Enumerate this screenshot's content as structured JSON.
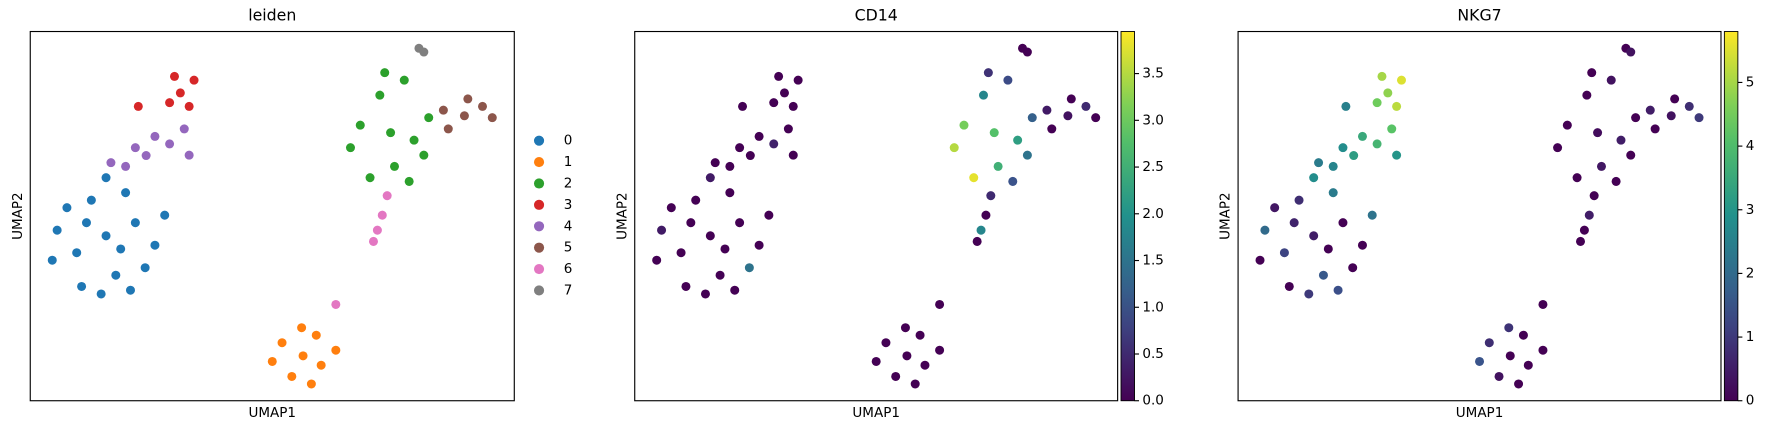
{
  "chart_data": [
    {
      "type": "scatter",
      "title": "leiden",
      "x_label": "UMAP1",
      "y_label": "UMAP2",
      "legend": "right",
      "series": [
        {
          "name": "0",
          "color": "#1f77b4",
          "x": [
            1.6,
            1.0,
            2.2,
            0.6,
            1.3,
            2.0,
            2.6,
            1.8,
            1.1,
            0.8,
            2.4,
            1.5,
            0.5,
            2.8,
            1.9,
            1.2,
            2.1,
            1.6
          ],
          "y": [
            4.45,
            4.0,
            4.8,
            4.6,
            5.4,
            5.6,
            4.2,
            3.4,
            3.1,
            5.2,
            3.6,
            2.9,
            3.8,
            5.0,
            4.1,
            4.8,
            3.0,
            6.0
          ]
        },
        {
          "name": "1",
          "color": "#ff7f0e",
          "x": [
            5.63,
            5.2,
            6.0,
            5.0,
            5.9,
            5.4,
            6.3,
            5.6,
            5.8
          ],
          "y": [
            1.25,
            1.6,
            1.0,
            1.1,
            1.8,
            0.7,
            1.4,
            2.0,
            0.5
          ]
        },
        {
          "name": "2",
          "color": "#2ca02c",
          "x": [
            7.42,
            6.8,
            7.9,
            7.2,
            7.7,
            6.6,
            8.2,
            7.5,
            7.0,
            7.8,
            7.3,
            8.1
          ],
          "y": [
            7.2,
            7.4,
            7.0,
            8.2,
            8.6,
            6.8,
            7.6,
            6.3,
            6.0,
            5.9,
            8.8,
            6.6
          ]
        },
        {
          "name": "3",
          "color": "#d62728",
          "x": [
            3.12,
            3.4,
            2.9,
            3.3,
            3.0,
            2.26
          ],
          "y": [
            8.26,
            8.6,
            8.0,
            7.9,
            8.7,
            7.9
          ]
        },
        {
          "name": "4",
          "color": "#9467bd",
          "x": [
            2.42,
            2.0,
            2.9,
            3.2,
            1.7,
            2.6,
            3.3,
            2.2
          ],
          "y": [
            6.59,
            6.3,
            6.9,
            7.3,
            6.4,
            7.1,
            6.6,
            6.8
          ]
        },
        {
          "name": "5",
          "color": "#8c564b",
          "x": [
            8.93,
            8.6,
            9.3,
            9.0,
            8.5,
            9.5
          ],
          "y": [
            7.65,
            7.3,
            7.9,
            8.1,
            7.8,
            7.6
          ]
        },
        {
          "name": "6",
          "color": "#e377c2",
          "x": [
            7.35,
            7.25,
            7.15,
            7.07,
            6.3
          ],
          "y": [
            5.52,
            5.0,
            4.6,
            4.3,
            2.62
          ]
        },
        {
          "name": "7",
          "color": "#7f7f7f",
          "x": [
            8.0,
            8.1
          ],
          "y": [
            9.45,
            9.35
          ]
        }
      ]
    },
    {
      "type": "scatter",
      "title": "CD14",
      "x_label": "UMAP1",
      "y_label": "UMAP2",
      "colormap": "viridis",
      "x": [
        1.6,
        1.0,
        2.2,
        0.6,
        1.3,
        2.0,
        2.6,
        1.8,
        1.1,
        0.8,
        2.4,
        1.5,
        0.5,
        2.8,
        1.9,
        1.2,
        2.1,
        1.6,
        5.63,
        5.2,
        6.0,
        5.0,
        5.9,
        5.4,
        6.3,
        5.6,
        5.8,
        7.42,
        6.8,
        7.9,
        7.2,
        7.7,
        6.6,
        8.2,
        7.5,
        7.0,
        7.8,
        7.3,
        8.1,
        3.12,
        3.4,
        2.9,
        3.3,
        3.0,
        2.26,
        2.42,
        2.0,
        2.9,
        3.2,
        1.7,
        2.6,
        3.3,
        2.2,
        8.93,
        8.6,
        9.3,
        9.0,
        8.5,
        9.5,
        7.35,
        7.25,
        7.15,
        7.07,
        6.3,
        8.0,
        8.1
      ],
      "y": [
        4.45,
        4.0,
        4.8,
        4.6,
        5.4,
        5.6,
        4.2,
        3.4,
        3.1,
        5.2,
        3.6,
        2.9,
        3.8,
        5.0,
        4.1,
        4.8,
        3.0,
        6.0,
        1.25,
        1.6,
        1.0,
        1.1,
        1.8,
        0.7,
        1.4,
        2.0,
        0.5,
        7.2,
        7.4,
        7.0,
        8.2,
        8.6,
        6.8,
        7.6,
        6.3,
        6.0,
        5.9,
        8.8,
        6.6,
        8.26,
        8.6,
        8.0,
        7.9,
        8.7,
        7.9,
        6.59,
        6.3,
        6.9,
        7.3,
        6.4,
        7.1,
        6.6,
        6.8,
        7.65,
        7.3,
        7.9,
        8.1,
        7.8,
        7.6,
        5.52,
        5.0,
        4.6,
        4.3,
        2.62,
        9.45,
        9.35
      ],
      "values": [
        0,
        0,
        0,
        0.3,
        0,
        0,
        0,
        0,
        0,
        0,
        1.5,
        0,
        0,
        0,
        0,
        0,
        0,
        0.3,
        0,
        0,
        0,
        0,
        0,
        0,
        0,
        0,
        0,
        2.8,
        3.1,
        2.2,
        1.8,
        0.9,
        3.5,
        1.2,
        2.5,
        3.8,
        1.0,
        0.6,
        1.5,
        0,
        0,
        0,
        0,
        0,
        0,
        0,
        0,
        0.4,
        0,
        0,
        0,
        0,
        0,
        0.2,
        0,
        0.5,
        0,
        0.3,
        0,
        0.5,
        0,
        1.8,
        0,
        0,
        0,
        0
      ],
      "clim": [
        0,
        3.95
      ],
      "cticks": [
        {
          "value": 0,
          "label": "0.0"
        },
        {
          "value": 0.5,
          "label": "0.5"
        },
        {
          "value": 1,
          "label": "1.0"
        },
        {
          "value": 1.5,
          "label": "1.5"
        },
        {
          "value": 2,
          "label": "2.0"
        },
        {
          "value": 2.5,
          "label": "2.5"
        },
        {
          "value": 3,
          "label": "3.0"
        },
        {
          "value": 3.5,
          "label": "3.5"
        }
      ]
    },
    {
      "type": "scatter",
      "title": "NKG7",
      "x_label": "UMAP1",
      "y_label": "UMAP2",
      "colormap": "viridis",
      "x": [
        1.6,
        1.0,
        2.2,
        0.6,
        1.3,
        2.0,
        2.6,
        1.8,
        1.1,
        0.8,
        2.4,
        1.5,
        0.5,
        2.8,
        1.9,
        1.2,
        2.1,
        1.6,
        5.63,
        5.2,
        6.0,
        5.0,
        5.9,
        5.4,
        6.3,
        5.6,
        5.8,
        7.42,
        6.8,
        7.9,
        7.2,
        7.7,
        6.6,
        8.2,
        7.5,
        7.0,
        7.8,
        7.3,
        8.1,
        3.12,
        3.4,
        2.9,
        3.3,
        3.0,
        2.26,
        2.42,
        2.0,
        2.9,
        3.2,
        1.7,
        2.6,
        3.3,
        2.2,
        8.93,
        8.6,
        9.3,
        9.0,
        8.5,
        9.5,
        7.35,
        7.25,
        7.15,
        7.07,
        6.3,
        8.0,
        8.1
      ],
      "y": [
        4.45,
        4.0,
        4.8,
        4.6,
        5.4,
        5.6,
        4.2,
        3.4,
        3.1,
        5.2,
        3.6,
        2.9,
        3.8,
        5.0,
        4.1,
        4.8,
        3.0,
        6.0,
        1.25,
        1.6,
        1.0,
        1.1,
        1.8,
        0.7,
        1.4,
        2.0,
        0.5,
        7.2,
        7.4,
        7.0,
        8.2,
        8.6,
        6.8,
        7.6,
        6.3,
        6.0,
        5.9,
        8.8,
        6.6,
        8.26,
        8.6,
        8.0,
        7.9,
        8.7,
        7.9,
        6.59,
        6.3,
        6.9,
        7.3,
        6.4,
        7.1,
        6.6,
        6.8,
        7.65,
        7.3,
        7.9,
        8.1,
        7.8,
        7.6,
        5.52,
        5.0,
        4.6,
        4.3,
        2.62,
        9.45,
        9.35
      ],
      "values": [
        0.5,
        1.2,
        0,
        2.0,
        0.8,
        2.4,
        0,
        1.6,
        0,
        0.4,
        0,
        1.0,
        0,
        2.2,
        0,
        0.6,
        1.4,
        2.8,
        0,
        0.8,
        0,
        1.5,
        0,
        0.3,
        0,
        0.9,
        0,
        0.2,
        0,
        0.5,
        0,
        0.3,
        0,
        0,
        0.4,
        0,
        0,
        0,
        0,
        4.8,
        5.5,
        4.5,
        5.2,
        5.0,
        2.5,
        3.2,
        2.6,
        3.8,
        4.2,
        2.4,
        3.5,
        3.0,
        2.8,
        0.3,
        0,
        0.8,
        0,
        0.5,
        1.0,
        0,
        0.5,
        0,
        0,
        0,
        0,
        0.3
      ],
      "clim": [
        0,
        5.8
      ],
      "cticks": [
        0,
        1,
        2,
        3,
        4,
        5
      ]
    }
  ]
}
